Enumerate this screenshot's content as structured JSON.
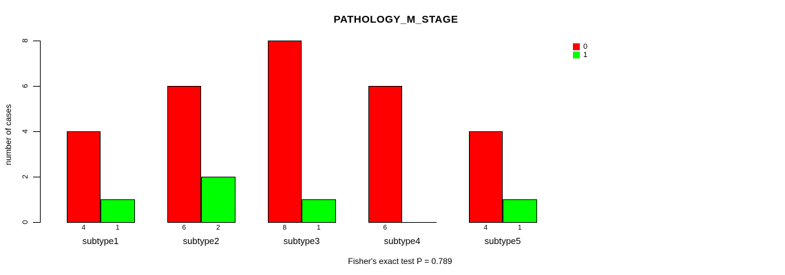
{
  "title": "PATHOLOGY_M_STAGE",
  "footer": "Fisher's exact test P = 0.789",
  "legend": {
    "items": [
      {
        "label": "0",
        "color": "#ff0000"
      },
      {
        "label": "1",
        "color": "#00ff00"
      }
    ]
  },
  "chart_data": {
    "type": "bar",
    "title": "PATHOLOGY_M_STAGE",
    "xlabel": "",
    "ylabel": "number of cases",
    "categories": [
      "subtype1",
      "subtype2",
      "subtype3",
      "subtype4",
      "subtype5"
    ],
    "series": [
      {
        "name": "0",
        "color": "#ff0000",
        "values": [
          4,
          6,
          8,
          6,
          4
        ]
      },
      {
        "name": "1",
        "color": "#00ff00",
        "values": [
          1,
          2,
          1,
          0,
          1
        ]
      }
    ],
    "bar_count_labels": [
      [
        "4",
        "1"
      ],
      [
        "6",
        "2"
      ],
      [
        "8",
        "1"
      ],
      [
        "6",
        ""
      ],
      [
        "4",
        "1"
      ]
    ],
    "yticks": [
      0,
      2,
      4,
      6,
      8
    ],
    "ylim": [
      0,
      8
    ],
    "grid": false,
    "legend_position": "top-right",
    "annotation": "Fisher's exact test P = 0.789",
    "colors": {
      "bar_border": "#000000",
      "axis": "#000000",
      "background": "#ffffff"
    }
  }
}
